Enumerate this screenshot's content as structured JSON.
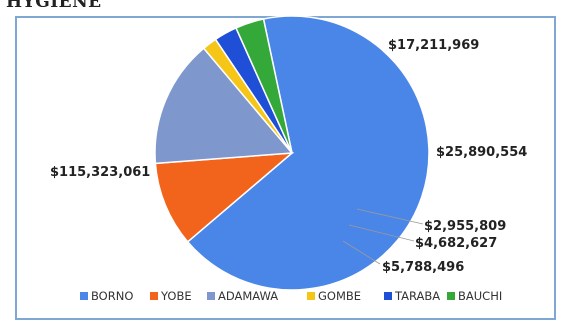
{
  "heading": "HYGIENE",
  "chart_data": {
    "type": "pie",
    "title": "",
    "legend_position": "bottom",
    "slices": [
      {
        "name": "BORNO",
        "value": 115323061,
        "label": "$115,323,061",
        "color": "#4a86e8"
      },
      {
        "name": "YOBE",
        "value": 17211969,
        "label": "$17,211,969",
        "color": "#f2641c"
      },
      {
        "name": "ADAMAWA",
        "value": 25890554,
        "label": "$25,890,554",
        "color": "#7e97cc"
      },
      {
        "name": "GOMBE",
        "value": 2955809,
        "label": "$2,955,809",
        "color": "#f5c518"
      },
      {
        "name": "TARABA",
        "value": 4682627,
        "label": "$4,682,627",
        "color": "#1f4fd6"
      },
      {
        "name": "BAUCHI",
        "value": 5788496,
        "label": "$5,788,496",
        "color": "#35a83a"
      }
    ]
  }
}
